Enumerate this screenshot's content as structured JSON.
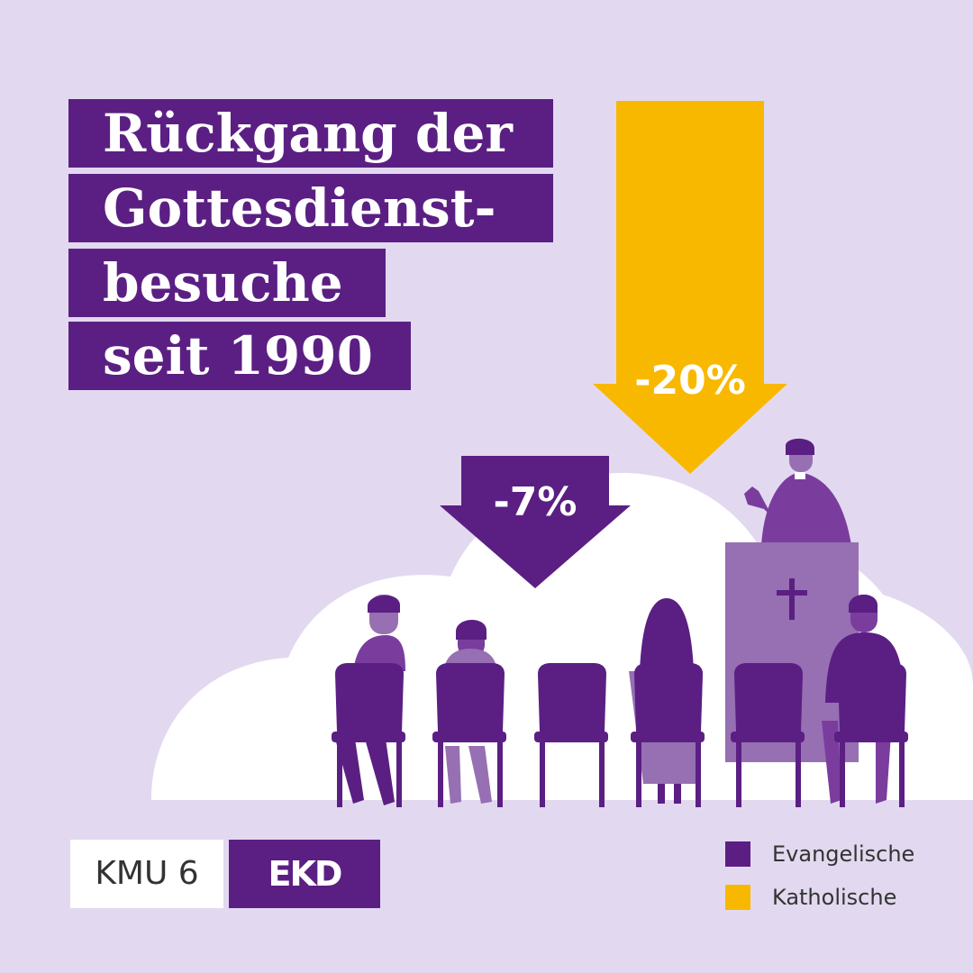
{
  "title": {
    "lines": [
      "Rückgang der",
      "Gottesdienst-",
      "besuche",
      "seit 1990"
    ]
  },
  "chart_data": {
    "type": "bar",
    "categories": [
      "Evangelische",
      "Katholische"
    ],
    "values": [
      -7,
      -20
    ],
    "unit": "%",
    "value_labels": [
      "-7%",
      "-20%"
    ],
    "colors": [
      "#5b1f83",
      "#f9b800"
    ],
    "legend_placement": "bottom-right"
  },
  "legend": {
    "items": [
      {
        "label": "Evangelische",
        "color": "#5b1f83"
      },
      {
        "label": "Katholische",
        "color": "#f9b800"
      }
    ]
  },
  "footer": {
    "kmu_label": "KMU 6",
    "ekd_label": "EKD"
  },
  "illustration": {
    "cross_icon": "cross-icon",
    "colors": {
      "dark": "#5b1f83",
      "mid": "#7a3d9e",
      "light": "#9670b2",
      "cloud": "#ffffff"
    }
  }
}
